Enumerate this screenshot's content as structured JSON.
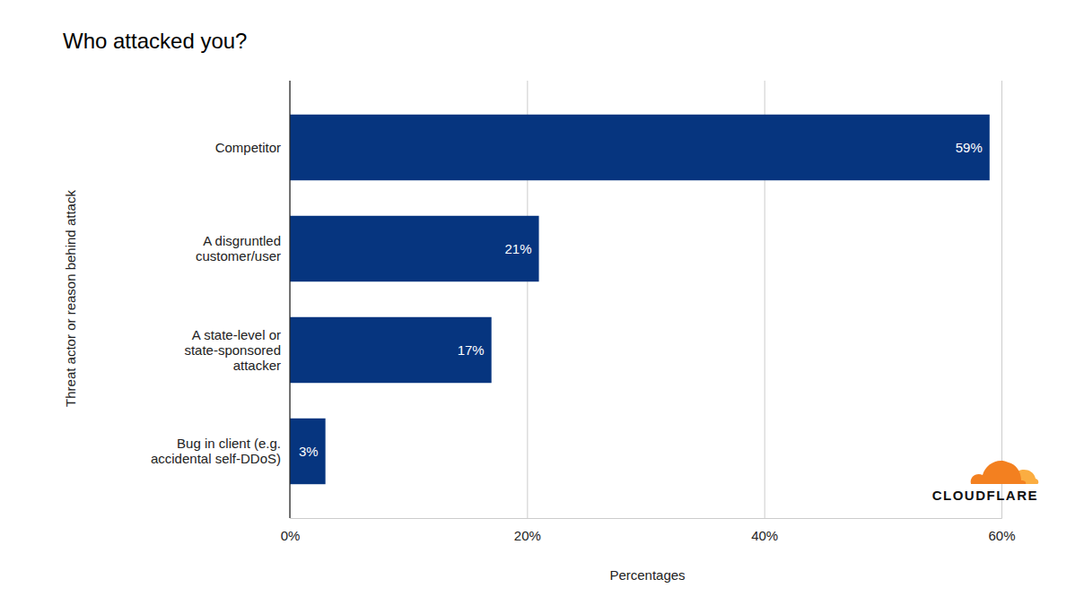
{
  "chart_data": {
    "type": "bar",
    "orientation": "horizontal",
    "title": "Who attacked you?",
    "x_label": "Percentages",
    "y_label": "Threat actor or reason behind attack",
    "categories": [
      "Competitor",
      "A disgruntled customer/user",
      "A state-level or state-sponsored attacker",
      "Bug in client (e.g. accidental self-DDoS)"
    ],
    "values": [
      59,
      21,
      17,
      3
    ],
    "value_labels": [
      "59%",
      "21%",
      "17%",
      "3%"
    ],
    "color": "#06357f",
    "xlim": [
      0,
      60
    ],
    "xticks": [
      {
        "value": 0,
        "label": "0%"
      },
      {
        "value": 20,
        "label": "20%"
      },
      {
        "value": 40,
        "label": "40%"
      },
      {
        "value": 60,
        "label": "60%"
      }
    ],
    "grid": true,
    "data_labels": true,
    "annotations": [
      "CLOUDFLARE"
    ]
  }
}
